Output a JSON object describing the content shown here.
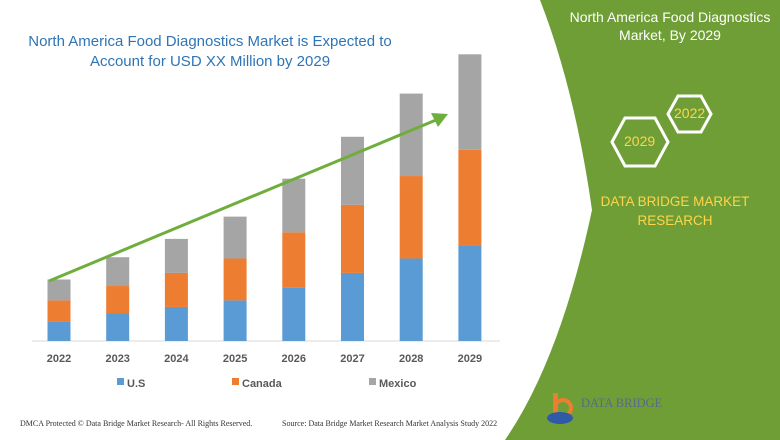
{
  "header": {
    "title": "North America Food Diagnostics Market is Expected to Account for USD XX Million by 2029"
  },
  "side_panel": {
    "title": "North America Food Diagnostics Market, By 2029",
    "hex_years": [
      "2022",
      "2029"
    ],
    "brand": "DATA BRIDGE MARKET RESEARCH",
    "logo_text": "DATA BRIDGE",
    "color": "#6f9e37",
    "accent": "#ffd54a"
  },
  "footer": {
    "left": "DMCA Protected © Data Bridge Market Research- All Rights Reserved.",
    "right": "Source: Data Bridge Market Research Market Analysis Study 2022"
  },
  "chart_data": {
    "type": "bar",
    "stacked": true,
    "title": "",
    "xlabel": "",
    "ylabel": "",
    "grid": false,
    "legend_position": "bottom",
    "trend_arrow": true,
    "categories": [
      "2022",
      "2023",
      "2024",
      "2025",
      "2026",
      "2027",
      "2028",
      "2029"
    ],
    "series": [
      {
        "name": "U.S",
        "color": "#5b9bd5",
        "values": [
          15,
          21,
          26,
          31,
          41,
          52,
          63,
          73
        ]
      },
      {
        "name": "Canada",
        "color": "#ed7d31",
        "values": [
          16,
          21,
          26,
          32,
          42,
          52,
          63,
          73
        ]
      },
      {
        "name": "Mexico",
        "color": "#a5a5a5",
        "values": [
          16,
          22,
          26,
          32,
          41,
          52,
          63,
          73
        ]
      }
    ],
    "ylim": [
      0,
      220
    ]
  }
}
